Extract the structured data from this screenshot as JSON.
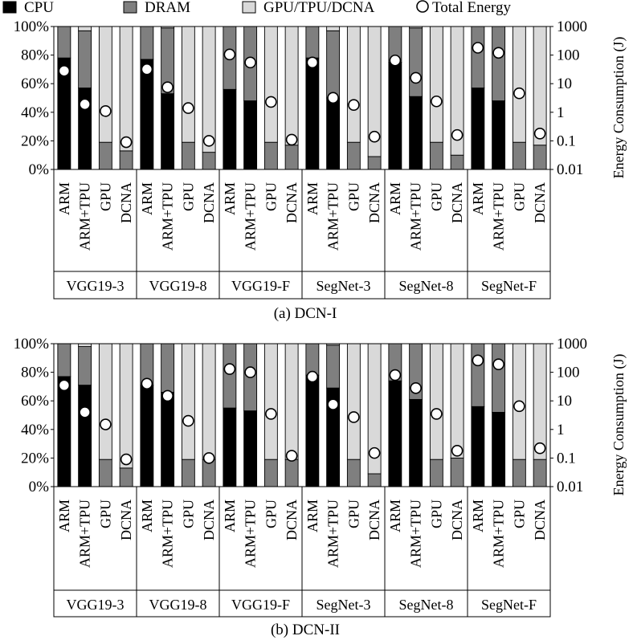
{
  "legend": {
    "cpu": "CPU",
    "dram": "DRAM",
    "gpu": "GPU/TPU/DCNA",
    "total": "Total Energy"
  },
  "colors": {
    "cpu": "#000000",
    "dram": "#7f7f7f",
    "gpu": "#d9d9d9",
    "marker_fill": "#ffffff"
  },
  "chart_data": [
    {
      "type": "bar",
      "stacked": true,
      "caption": "(a)  DCN-I",
      "left_ticks": [
        "0%",
        "20%",
        "40%",
        "60%",
        "80%",
        "100%"
      ],
      "right_ticks": [
        "0.01",
        "0.1",
        "1",
        "10",
        "100",
        "1000"
      ],
      "ylabel_right": "Energy Consumption (J)",
      "ylim_left": [
        0,
        100
      ],
      "ylim_right": [
        0.01,
        1000
      ],
      "right_scale": "log",
      "groups": [
        "VGG19-3",
        "VGG19-8",
        "VGG19-F",
        "SegNet-3",
        "SegNet-8",
        "SegNet-F"
      ],
      "categories": [
        "ARM",
        "ARM+TPU",
        "GPU",
        "DCNA"
      ],
      "series": [
        {
          "name": "CPU",
          "values": [
            [
              78,
              57,
              0,
              0
            ],
            [
              77,
              53,
              0,
              0
            ],
            [
              56,
              48,
              0,
              0
            ],
            [
              78,
              50,
              0,
              0
            ],
            [
              75,
              51,
              0,
              0
            ],
            [
              57,
              48,
              0,
              0
            ]
          ]
        },
        {
          "name": "DRAM",
          "values": [
            [
              22,
              40,
              19,
              13
            ],
            [
              23,
              46,
              19,
              12
            ],
            [
              44,
              52,
              19,
              17
            ],
            [
              22,
              47,
              19,
              9
            ],
            [
              25,
              48,
              19,
              10
            ],
            [
              43,
              52,
              19,
              17
            ]
          ]
        },
        {
          "name": "GPU/TPU/DCNA",
          "values": [
            [
              0,
              3,
              81,
              87
            ],
            [
              0,
              1,
              81,
              88
            ],
            [
              0,
              0,
              81,
              83
            ],
            [
              0,
              3,
              81,
              91
            ],
            [
              0,
              1,
              81,
              90
            ],
            [
              0,
              0,
              81,
              83
            ]
          ]
        },
        {
          "name": "Total Energy",
          "values": [
            [
              28,
              1.9,
              1.1,
              0.09
            ],
            [
              32,
              7.5,
              1.4,
              0.1
            ],
            [
              105,
              55,
              2.3,
              0.11
            ],
            [
              55,
              3.2,
              1.8,
              0.14
            ],
            [
              65,
              16,
              2.4,
              0.16
            ],
            [
              180,
              120,
              4.6,
              0.18
            ]
          ]
        }
      ]
    },
    {
      "type": "bar",
      "stacked": true,
      "caption": "(b)  DCN-II",
      "left_ticks": [
        "0%",
        "20%",
        "40%",
        "60%",
        "80%",
        "100%"
      ],
      "right_ticks": [
        "0.01",
        "0.1",
        "1",
        "10",
        "100",
        "1000"
      ],
      "ylabel_right": "Energy Consumption (J)",
      "ylim_left": [
        0,
        100
      ],
      "ylim_right": [
        0.01,
        1000
      ],
      "right_scale": "log",
      "groups": [
        "VGG19-3",
        "VGG19-8",
        "VGG19-F",
        "SegNet-3",
        "SegNet-8",
        "SegNet-F"
      ],
      "categories": [
        "ARM",
        "ARM+TPU",
        "GPU",
        "DCNA"
      ],
      "series": [
        {
          "name": "CPU",
          "values": [
            [
              77,
              71,
              0,
              0
            ],
            [
              71,
              66,
              0,
              0
            ],
            [
              55,
              53,
              0,
              0
            ],
            [
              78,
              69,
              0,
              0
            ],
            [
              74,
              61,
              0,
              0
            ],
            [
              56,
              52,
              0,
              0
            ]
          ]
        },
        {
          "name": "DRAM",
          "values": [
            [
              23,
              27,
              19,
              13
            ],
            [
              29,
              34,
              19,
              19
            ],
            [
              45,
              47,
              19,
              19
            ],
            [
              22,
              30,
              19,
              9
            ],
            [
              26,
              39,
              19,
              20
            ],
            [
              44,
              48,
              19,
              19
            ]
          ]
        },
        {
          "name": "GPU/TPU/DCNA",
          "values": [
            [
              0,
              2,
              81,
              87
            ],
            [
              0,
              0,
              81,
              81
            ],
            [
              0,
              0,
              81,
              81
            ],
            [
              0,
              1,
              81,
              91
            ],
            [
              0,
              0,
              81,
              80
            ],
            [
              0,
              0,
              81,
              81
            ]
          ]
        },
        {
          "name": "Total Energy",
          "values": [
            [
              35,
              4.0,
              1.5,
              0.09
            ],
            [
              40,
              15,
              2.0,
              0.1
            ],
            [
              130,
              100,
              3.5,
              0.12
            ],
            [
              70,
              7.5,
              2.7,
              0.15
            ],
            [
              80,
              28,
              3.5,
              0.18
            ],
            [
              260,
              190,
              6.5,
              0.22
            ]
          ]
        }
      ]
    }
  ]
}
